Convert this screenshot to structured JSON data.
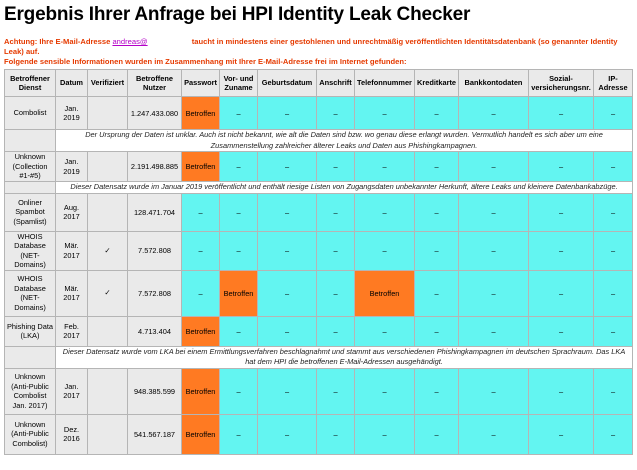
{
  "page": {
    "title": "Ergebnis Ihrer Anfrage bei HPI Identity Leak Checker",
    "alert_prefix": "Achtung: Ihre E-Mail-Adresse",
    "email": "andreas@",
    "alert_suffix": "taucht in mindestens einer gestohlenen und unrechtmäßig veröffentlichten Identitätsdatenbank (so genannter Identity Leak) auf.",
    "alert_line2": "Folgende sensible Informationen wurden im Zusammenhang mit Ihrer E-Mail-Adresse frei im Internet gefunden:"
  },
  "columns": [
    "Betroffener Dienst",
    "Datum",
    "Verifiziert",
    "Betroffene Nutzer",
    "Passwort",
    "Vor- und Zuname",
    "Geburtsdatum",
    "Anschrift",
    "Telefonnummer",
    "Kreditkarte",
    "Bankkontodaten",
    "Sozial-versicherungsnr.",
    "IP-Adresse"
  ],
  "symbols": {
    "dash": "–",
    "hit": "Betroffen",
    "check": "✓"
  },
  "leaks": [
    {
      "service": "Combolist",
      "date": "Jan. 2019",
      "verified": "",
      "users": "1.247.433.080",
      "cells": [
        "Betroffen",
        "–",
        "–",
        "–",
        "–",
        "–",
        "–",
        "–",
        "–"
      ],
      "description": "Der Ursprung der Daten ist unklar. Auch ist nicht bekannt, wie alt die Daten sind bzw. wo genau diese erlangt wurden. Vermutlich handelt es sich aber um eine Zusammenstellung zahlreicher älterer Leaks und Daten aus Phishingkampagnen."
    },
    {
      "service": "Unknown (Collection #1-#5)",
      "date": "Jan. 2019",
      "verified": "",
      "users": "2.191.498.885",
      "cells": [
        "Betroffen",
        "–",
        "–",
        "–",
        "–",
        "–",
        "–",
        "–",
        "–"
      ],
      "description": "Dieser Datensatz wurde im Januar 2019 veröffentlicht und enthält riesige Listen von Zugangsdaten unbekannter Herkunft, ältere Leaks und kleinere Datenbankabzüge."
    },
    {
      "service": "Onliner Spambot (Spamlist)",
      "date": "Aug. 2017",
      "verified": "",
      "users": "128.471.704",
      "cells": [
        "–",
        "–",
        "–",
        "–",
        "–",
        "–",
        "–",
        "–",
        "–"
      ],
      "description": ""
    },
    {
      "service": "WHOIS Database (NET-Domains)",
      "date": "Mär. 2017",
      "verified": "✓",
      "users": "7.572.808",
      "cells": [
        "–",
        "–",
        "–",
        "–",
        "–",
        "–",
        "–",
        "–",
        "–"
      ],
      "description": ""
    },
    {
      "service": "WHOIS Database (NET-Domains)",
      "date": "Mär. 2017",
      "verified": "✓",
      "users": "7.572.808",
      "cells": [
        "–",
        "Betroffen",
        "–",
        "–",
        "Betroffen",
        "–",
        "–",
        "–",
        "–"
      ],
      "description": ""
    },
    {
      "service": "Phishing Data (LKA)",
      "date": "Feb. 2017",
      "verified": "",
      "users": "4.713.404",
      "cells": [
        "Betroffen",
        "–",
        "–",
        "–",
        "–",
        "–",
        "–",
        "–",
        "–"
      ],
      "description": "Dieser Datensatz wurde vom LKA bei einem Ermittlungsverfahren beschlagnahmt und stammt aus verschiedenen Phishingkampagnen im deutschen Sprachraum. Das LKA hat dem HPI die betroffenen E-Mail-Adressen ausgehändigt."
    },
    {
      "service": "Unknown (Anti-Public Combolist Jan. 2017)",
      "date": "Jan. 2017",
      "verified": "",
      "users": "948.385.599",
      "cells": [
        "Betroffen",
        "–",
        "–",
        "–",
        "–",
        "–",
        "–",
        "–",
        "–"
      ],
      "description": ""
    },
    {
      "service": "Unknown (Anti-Public Combolist)",
      "date": "Dez. 2016",
      "verified": "",
      "users": "541.567.187",
      "cells": [
        "Betroffen",
        "–",
        "–",
        "–",
        "–",
        "–",
        "–",
        "–",
        "–"
      ],
      "description": ""
    }
  ]
}
